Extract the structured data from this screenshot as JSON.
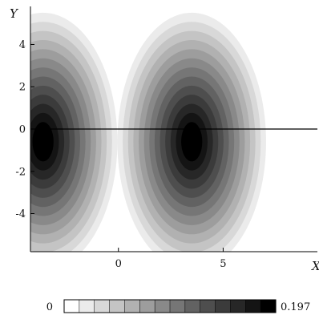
{
  "chart_data": {
    "type": "heatmap",
    "title": "",
    "xlabel": "X",
    "ylabel": "Y",
    "xlim": [
      -4.2,
      9.5
    ],
    "ylim": [
      -5.8,
      5.8
    ],
    "x_ticks": [
      {
        "value": 0,
        "label": "0"
      },
      {
        "value": 5,
        "label": "5"
      }
    ],
    "y_ticks": [
      {
        "value": 4,
        "label": "4"
      },
      {
        "value": 2,
        "label": "2"
      },
      {
        "value": 0,
        "label": "0"
      },
      {
        "value": -2,
        "label": "-2"
      },
      {
        "value": -4,
        "label": "-4"
      }
    ],
    "reference_line_y": 0,
    "colorbar": {
      "min": 0,
      "max": 0.197,
      "min_label": "0",
      "max_label": "0.197",
      "levels": 14
    },
    "lobes": [
      {
        "center_x": -3.6,
        "center_y": -0.6,
        "peak": 0.197
      },
      {
        "center_x": 3.5,
        "center_y": -0.6,
        "peak": 0.197
      }
    ],
    "colormap": [
      "#ffffff",
      "#000000"
    ]
  }
}
